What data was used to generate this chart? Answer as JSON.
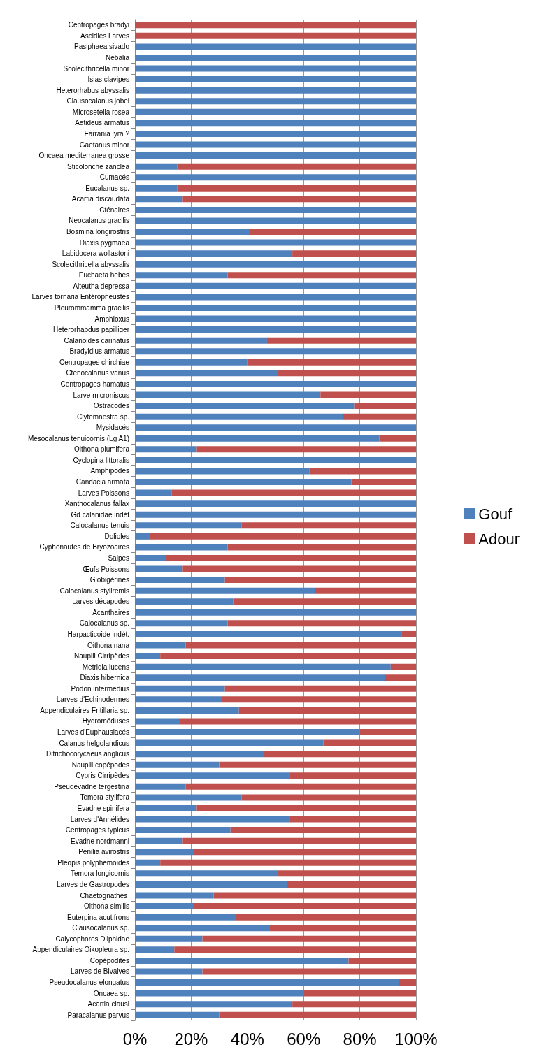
{
  "chart_data": {
    "type": "bar",
    "orientation": "horizontal",
    "stacked": true,
    "categories": [
      "Centropages bradyi",
      "Ascidies Larves",
      "Pasiphaea sivado",
      "Nebalia",
      "Scolecithricella minor",
      "Isias clavipes",
      "Heterorhabus abyssalis",
      "Clausocalanus jobei",
      "Microsetella rosea",
      "Aetideus armatus",
      "Farrania lyra ?",
      "Gaetanus minor",
      "Oncaea mediterranea grosse",
      "Sticolonche zanclea",
      "Cumacés",
      "Eucalanus sp.",
      "Acartia discaudata",
      "Cténaires",
      "Neocalanus gracilis",
      "Bosmina longirostris",
      "Diaxis pygmaea",
      "Labidocera wollastoni",
      "Scolecithricella abyssalis",
      "Euchaeta hebes",
      "Alteutha depressa",
      "Larves tornaria Entéropneustes",
      "Pleurommamma gracilis",
      "Amphioxus",
      "Heterorhabdus papilliger",
      "Calanoides carinatus",
      "Bradyidius armatus",
      "Centropages chirchiae",
      "Ctenocalanus vanus",
      "Centropages hamatus",
      "Larve microniscus",
      "Ostracodes",
      "Clytemnestra sp.",
      "Mysidacés",
      "Mesocalanus tenuicornis (Lg A1)",
      "Oithona plumifera",
      "Cyclopina littoralis",
      "Amphipodes",
      "Candacia armata",
      "Larves Poissons",
      "Xanthocalanus fallax",
      "Gd calanidae indét",
      "Calocalanus tenuis",
      "Dolioles",
      "Cyphonautes de Bryozoaires",
      "Salpes",
      "Œufs Poissons",
      "Globigérines",
      "Calocalanus styliremis",
      "Larves décapodes",
      "Acanthaires",
      "Calocalanus sp.",
      "Harpacticoide indét.",
      "Oithona nana",
      "Nauplii Cirripèdes",
      "Metridia lucens",
      "Diaxis hibernica",
      "Podon intermedius",
      "Larves d'Echinodermes",
      "Appendiculaires Fritillaria sp.",
      "Hydroméduses",
      "Larves d'Euphausiacés",
      "Calanus helgolandicus",
      "Ditrichocorycaeus anglicus",
      "Nauplii copépodes",
      "Cypris Cirripèdes",
      "Pseudevadne tergestina",
      "Temora stylifera",
      "Evadne spinifera",
      "Larves d'Annélides",
      "Centropages typicus",
      "Evadne nordmanni",
      "Penilia avirostris",
      "Pleopis polyphemoides",
      "Temora longicornis",
      "Larves de Gastropodes",
      "Chaetognathes ",
      "Oithona similis",
      "Euterpina acutifrons",
      "Clausocalanus sp.",
      "Calycophores Diiphidae",
      "Appendiculaires Oikopleura sp.",
      "Copépodites",
      "Larves de Bivalves",
      "Pseudocalanus elongatus",
      "Oncaea sp.",
      "Acartia clausi",
      "Paracalanus parvus"
    ],
    "series": [
      {
        "name": "Gouf",
        "color": "#4f81bd",
        "values": [
          0,
          0,
          100,
          100,
          100,
          100,
          100,
          100,
          100,
          100,
          100,
          100,
          100,
          15,
          100,
          15,
          17,
          100,
          100,
          41,
          100,
          56,
          100,
          33,
          100,
          100,
          100,
          100,
          100,
          47,
          100,
          40,
          51,
          100,
          66,
          78,
          74,
          100,
          87,
          22,
          100,
          62,
          77,
          13,
          100,
          100,
          38,
          5,
          33,
          11,
          17,
          32,
          64,
          35,
          100,
          33,
          95,
          18,
          9,
          91,
          89,
          32,
          31,
          37,
          16,
          80,
          67,
          46,
          30,
          55,
          18,
          38,
          22,
          55,
          34,
          17,
          21,
          9,
          51,
          54,
          28,
          21,
          36,
          48,
          24,
          14,
          76,
          24,
          94,
          60,
          56,
          30
        ]
      },
      {
        "name": "Adour",
        "color": "#c0504d",
        "values": [
          100,
          100,
          0,
          0,
          0,
          0,
          0,
          0,
          0,
          0,
          0,
          0,
          0,
          85,
          0,
          85,
          83,
          0,
          0,
          59,
          0,
          44,
          0,
          67,
          0,
          0,
          0,
          0,
          0,
          53,
          0,
          60,
          49,
          0,
          34,
          22,
          26,
          0,
          13,
          78,
          0,
          38,
          23,
          87,
          0,
          0,
          62,
          95,
          67,
          89,
          83,
          68,
          36,
          65,
          0,
          67,
          5,
          82,
          91,
          9,
          11,
          68,
          69,
          63,
          84,
          20,
          33,
          54,
          70,
          45,
          82,
          62,
          78,
          45,
          66,
          83,
          79,
          91,
          49,
          46,
          72,
          79,
          64,
          52,
          76,
          86,
          24,
          76,
          6,
          40,
          44,
          70
        ]
      }
    ],
    "xlim": [
      0,
      100
    ],
    "xticks": [
      {
        "value": 0,
        "label": "0%"
      },
      {
        "value": 20,
        "label": "20%"
      },
      {
        "value": 40,
        "label": "40%"
      },
      {
        "value": 60,
        "label": "60%"
      },
      {
        "value": 80,
        "label": "80%"
      },
      {
        "value": 100,
        "label": "100%"
      }
    ],
    "grid": "x",
    "legend": "right"
  }
}
